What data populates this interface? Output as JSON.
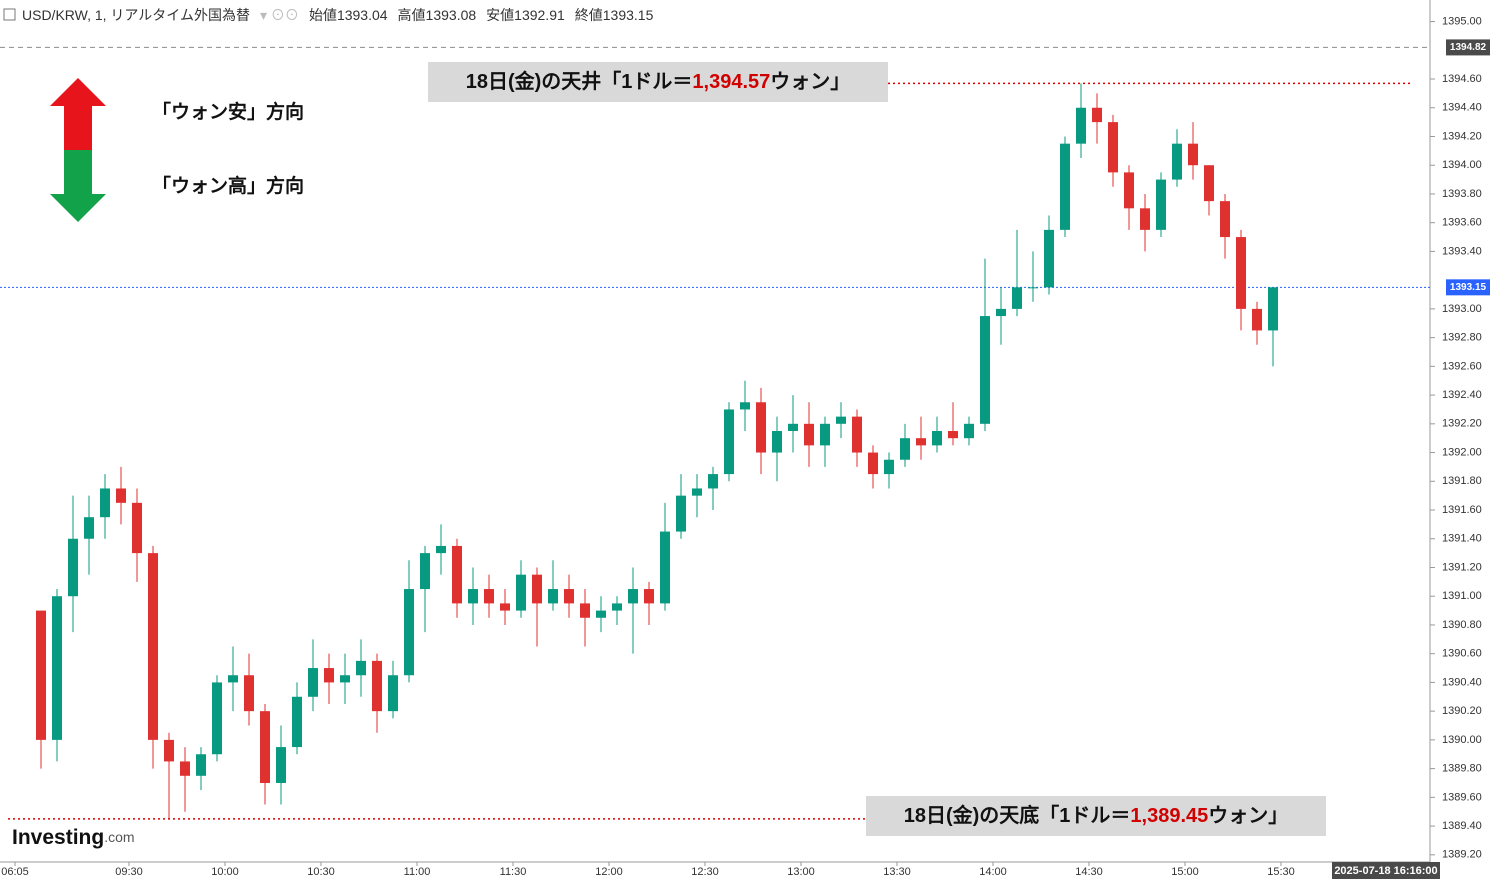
{
  "chart_data": {
    "type": "candlestick",
    "title": "USD/KRW, 1, リアルタイム外国為替",
    "ohlc": [
      {
        "label": "始値",
        "value": 1393.04
      },
      {
        "label": "高値",
        "value": 1393.08
      },
      {
        "label": "安値",
        "value": 1392.91
      },
      {
        "label": "終値",
        "value": 1393.15
      }
    ],
    "x": [
      "09:00",
      "09:05",
      "09:10",
      "09:15",
      "09:20",
      "09:25",
      "09:30",
      "09:35",
      "09:40",
      "09:45",
      "09:50",
      "09:55",
      "10:00",
      "10:05",
      "10:10",
      "10:15",
      "10:20",
      "10:25",
      "10:30",
      "10:35",
      "10:40",
      "10:45",
      "10:50",
      "10:55",
      "11:00",
      "11:05",
      "11:10",
      "11:15",
      "11:20",
      "11:25",
      "11:30",
      "11:35",
      "11:40",
      "11:45",
      "11:50",
      "11:55",
      "12:00",
      "12:05",
      "12:10",
      "12:15",
      "12:20",
      "12:25",
      "12:30",
      "12:35",
      "12:40",
      "12:45",
      "12:50",
      "12:55",
      "13:00",
      "13:05",
      "13:10",
      "13:15",
      "13:20",
      "13:25",
      "13:30",
      "13:35",
      "13:40",
      "13:45",
      "13:50",
      "13:55",
      "14:00",
      "14:05",
      "14:10",
      "14:15",
      "14:20",
      "14:25",
      "14:30",
      "14:35",
      "14:40",
      "14:45",
      "14:50",
      "14:55",
      "15:00",
      "15:05",
      "15:10",
      "15:15",
      "15:20",
      "15:25"
    ],
    "open": [
      1390.9,
      1390.0,
      1391.0,
      1391.4,
      1391.55,
      1391.75,
      1391.65,
      1391.3,
      1390.0,
      1389.85,
      1389.75,
      1389.9,
      1390.4,
      1390.45,
      1390.2,
      1389.7,
      1389.95,
      1390.3,
      1390.5,
      1390.4,
      1390.45,
      1390.55,
      1390.2,
      1390.45,
      1391.05,
      1391.3,
      1391.35,
      1390.95,
      1391.05,
      1390.95,
      1390.9,
      1391.15,
      1390.95,
      1391.05,
      1390.95,
      1390.85,
      1390.9,
      1390.95,
      1391.05,
      1390.95,
      1391.45,
      1391.7,
      1391.75,
      1391.85,
      1392.3,
      1392.35,
      1392.0,
      1392.15,
      1392.2,
      1392.05,
      1392.2,
      1392.25,
      1392.0,
      1391.85,
      1391.95,
      1392.1,
      1392.05,
      1392.15,
      1392.1,
      1392.2,
      1392.95,
      1393.0,
      1393.15,
      1393.15,
      1393.55,
      1394.15,
      1394.4,
      1394.3,
      1393.95,
      1393.7,
      1393.55,
      1393.9,
      1394.15,
      1394.0,
      1393.75,
      1393.5,
      1393.0,
      1392.85
    ],
    "high": [
      1390.9,
      1391.05,
      1391.7,
      1391.7,
      1391.85,
      1391.9,
      1391.75,
      1391.35,
      1390.05,
      1389.95,
      1389.95,
      1390.45,
      1390.65,
      1390.6,
      1390.25,
      1390.1,
      1390.4,
      1390.7,
      1390.6,
      1390.6,
      1390.7,
      1390.6,
      1390.55,
      1391.25,
      1391.35,
      1391.5,
      1391.4,
      1391.2,
      1391.15,
      1391.05,
      1391.25,
      1391.2,
      1391.25,
      1391.15,
      1391.05,
      1391.0,
      1391.0,
      1391.2,
      1391.1,
      1391.65,
      1391.85,
      1391.85,
      1391.9,
      1392.35,
      1392.5,
      1392.45,
      1392.25,
      1392.4,
      1392.35,
      1392.25,
      1392.35,
      1392.3,
      1392.05,
      1392.0,
      1392.2,
      1392.25,
      1392.25,
      1392.35,
      1392.25,
      1393.35,
      1393.15,
      1393.55,
      1393.4,
      1393.65,
      1394.2,
      1394.57,
      1394.5,
      1394.35,
      1394.0,
      1393.8,
      1393.95,
      1394.25,
      1394.3,
      1394.0,
      1393.8,
      1393.55,
      1393.05,
      1393.15
    ],
    "low": [
      1389.8,
      1389.85,
      1390.75,
      1391.15,
      1391.4,
      1391.5,
      1391.1,
      1389.8,
      1389.45,
      1389.5,
      1389.65,
      1389.85,
      1390.2,
      1390.1,
      1389.55,
      1389.55,
      1389.9,
      1390.2,
      1390.25,
      1390.25,
      1390.3,
      1390.05,
      1390.15,
      1390.4,
      1390.75,
      1391.15,
      1390.85,
      1390.8,
      1390.85,
      1390.8,
      1390.85,
      1390.65,
      1390.9,
      1390.85,
      1390.65,
      1390.75,
      1390.8,
      1390.6,
      1390.8,
      1390.9,
      1391.4,
      1391.55,
      1391.6,
      1391.8,
      1392.15,
      1391.85,
      1391.8,
      1392.0,
      1391.9,
      1391.9,
      1392.1,
      1391.9,
      1391.75,
      1391.75,
      1391.9,
      1391.95,
      1392.0,
      1392.05,
      1392.05,
      1392.15,
      1392.75,
      1392.95,
      1393.05,
      1393.1,
      1393.5,
      1394.05,
      1394.15,
      1393.85,
      1393.55,
      1393.4,
      1393.5,
      1393.85,
      1393.9,
      1393.65,
      1393.35,
      1392.85,
      1392.75,
      1392.6
    ],
    "close": [
      1390.0,
      1391.0,
      1391.4,
      1391.55,
      1391.75,
      1391.65,
      1391.3,
      1390.0,
      1389.85,
      1389.75,
      1389.9,
      1390.4,
      1390.45,
      1390.2,
      1389.7,
      1389.95,
      1390.3,
      1390.5,
      1390.4,
      1390.45,
      1390.55,
      1390.2,
      1390.45,
      1391.05,
      1391.3,
      1391.35,
      1390.95,
      1391.05,
      1390.95,
      1390.9,
      1391.15,
      1390.95,
      1391.05,
      1390.95,
      1390.85,
      1390.9,
      1390.95,
      1391.05,
      1390.95,
      1391.45,
      1391.7,
      1391.75,
      1391.85,
      1392.3,
      1392.35,
      1392.0,
      1392.15,
      1392.2,
      1392.05,
      1392.2,
      1392.25,
      1392.0,
      1391.85,
      1391.95,
      1392.1,
      1392.05,
      1392.15,
      1392.1,
      1392.2,
      1392.95,
      1393.0,
      1393.15,
      1393.15,
      1393.55,
      1394.15,
      1394.4,
      1394.3,
      1393.95,
      1393.7,
      1393.55,
      1393.9,
      1394.15,
      1394.0,
      1393.75,
      1393.5,
      1393.0,
      1392.85,
      1393.15
    ],
    "up_color": "#089981",
    "down_color": "#e03131",
    "ylim": [
      1389.15,
      1395.15
    ],
    "yticks": [
      {
        "value": 1389.2,
        "label": "1389.20"
      },
      {
        "value": 1389.4,
        "label": "1389.40"
      },
      {
        "value": 1389.6,
        "label": "1389.60"
      },
      {
        "value": 1389.8,
        "label": "1389.80"
      },
      {
        "value": 1390,
        "label": "1390.00"
      },
      {
        "value": 1390.2,
        "label": "1390.20"
      },
      {
        "value": 1390.4,
        "label": "1390.40"
      },
      {
        "value": 1390.6,
        "label": "1390.60"
      },
      {
        "value": 1390.8,
        "label": "1390.80"
      },
      {
        "value": 1391,
        "label": "1391.00"
      },
      {
        "value": 1391.2,
        "label": "1391.20"
      },
      {
        "value": 1391.4,
        "label": "1391.40"
      },
      {
        "value": 1391.6,
        "label": "1391.60"
      },
      {
        "value": 1391.8,
        "label": "1391.80"
      },
      {
        "value": 1392,
        "label": "1392.00"
      },
      {
        "value": 1392.2,
        "label": "1392.20"
      },
      {
        "value": 1392.4,
        "label": "1392.40"
      },
      {
        "value": 1392.6,
        "label": "1392.60"
      },
      {
        "value": 1392.8,
        "label": "1392.80"
      },
      {
        "value": 1393,
        "label": "1393.00"
      },
      {
        "value": 1393.4,
        "label": "1393.40"
      },
      {
        "value": 1393.6,
        "label": "1393.60"
      },
      {
        "value": 1393.8,
        "label": "1393.80"
      },
      {
        "value": 1394,
        "label": "1394.00"
      },
      {
        "value": 1394.2,
        "label": "1394.20"
      },
      {
        "value": 1394.4,
        "label": "1394.40"
      },
      {
        "value": 1394.6,
        "label": "1394.60"
      },
      {
        "value": 1395,
        "label": "1395.00"
      }
    ],
    "xticks": [
      "06:05",
      "09:30",
      "10:00",
      "10:30",
      "11:00",
      "11:30",
      "12:00",
      "12:30",
      "13:00",
      "13:30",
      "14:00",
      "14:30",
      "15:00",
      "15:30"
    ],
    "price_lines": [
      {
        "value": 1394.82,
        "color": "#8c8c8c",
        "tag_color": "#4a4a4a"
      },
      {
        "value": 1393.15,
        "color": "#2962ff",
        "tag_color": "#2962ff"
      }
    ],
    "annotations": [
      {
        "prefix": "18日(金)の天井「1ドル＝",
        "value": 1394.57,
        "value_label": "1,394.57",
        "suffix": "ウォン」"
      },
      {
        "prefix": "18日(金)の天底「1ドル＝",
        "value": 1389.45,
        "value_label": "1,389.45",
        "suffix": "ウォン」"
      }
    ],
    "legend_notes": [
      "「ウォン安」方向",
      "「ウォン高」方向"
    ],
    "date_label": "2025-07-18 16:16:00",
    "brand": "Investing",
    "brand_suffix": ".com"
  }
}
